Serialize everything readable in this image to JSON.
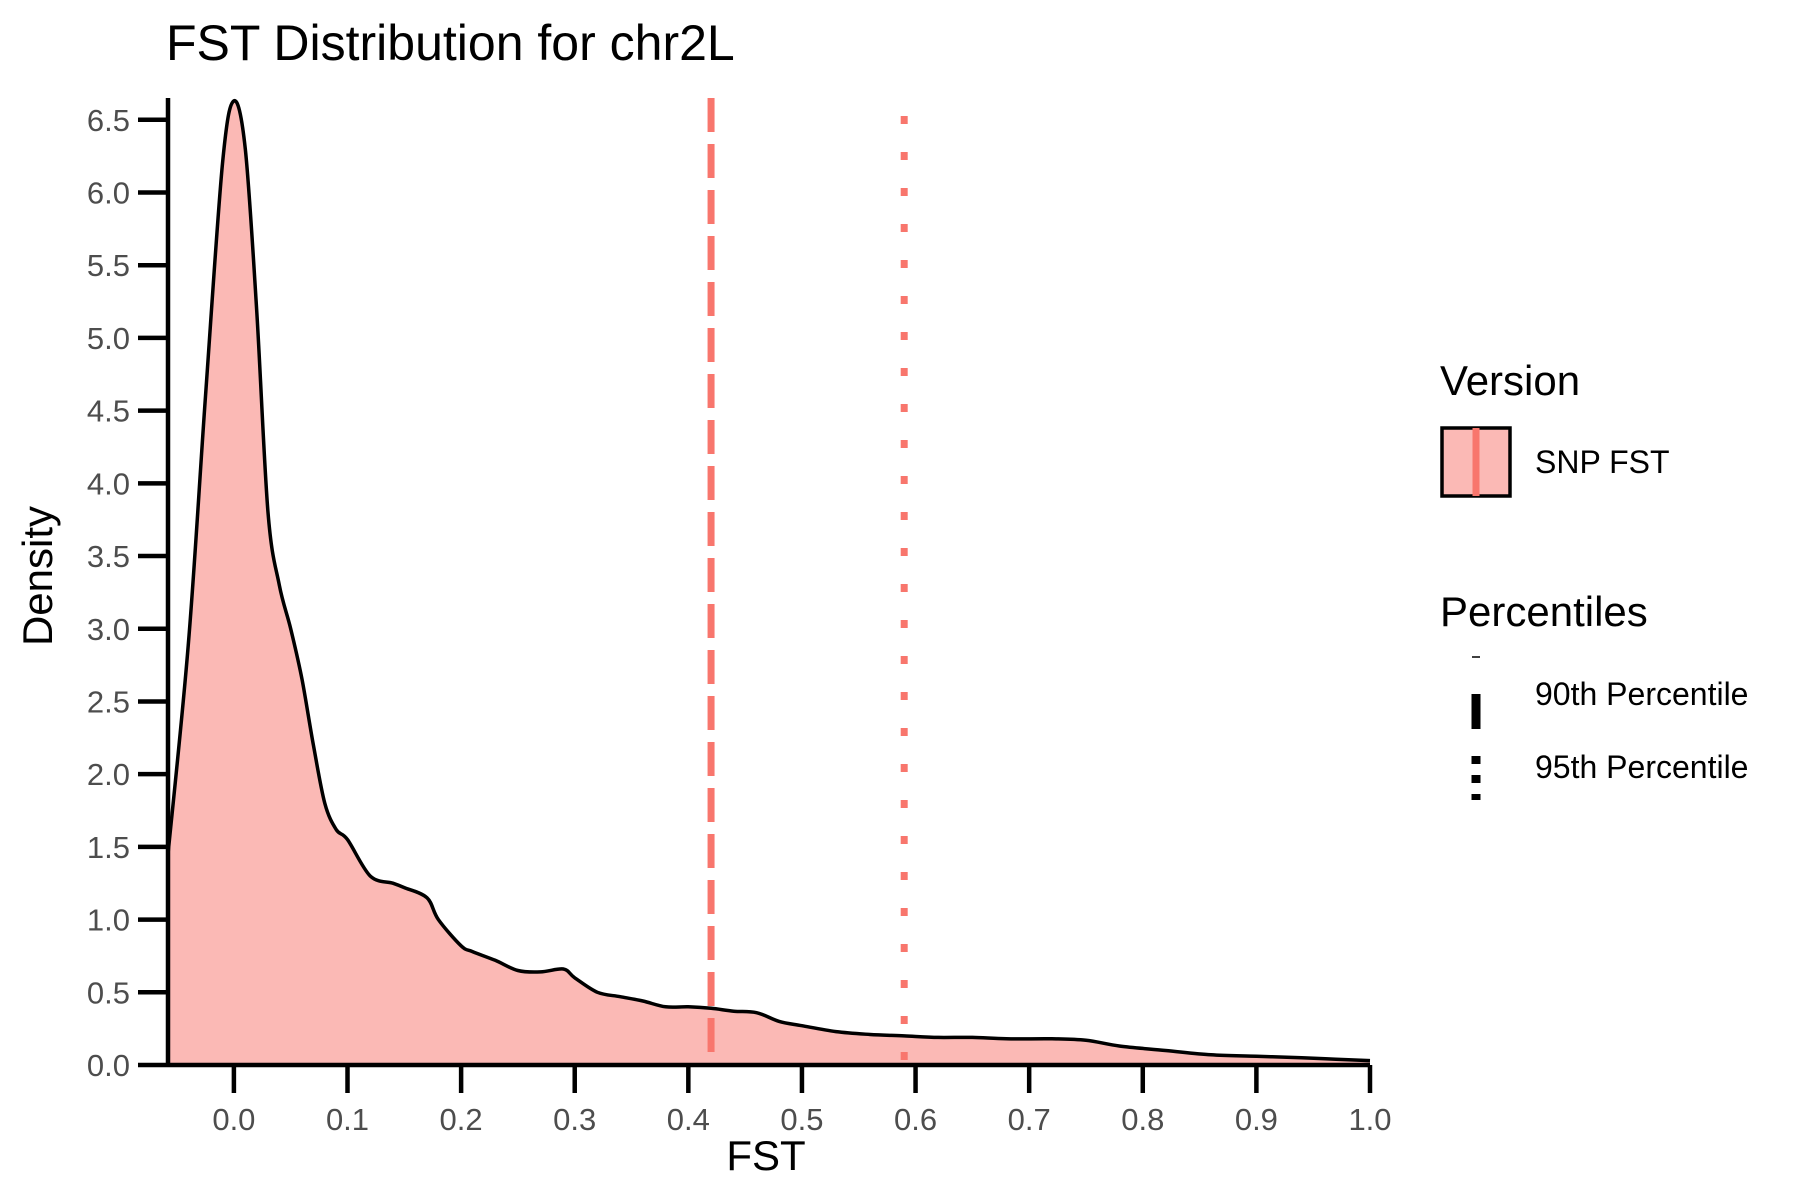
{
  "chart_data": {
    "type": "area",
    "title": "FST Distribution for chr2L",
    "xlabel": "FST",
    "ylabel": "Density",
    "xlim": [
      -0.058,
      1.0
    ],
    "ylim": [
      0,
      6.65
    ],
    "x_ticks": [
      "0.0",
      "0.1",
      "0.2",
      "0.3",
      "0.4",
      "0.5",
      "0.6",
      "0.7",
      "0.8",
      "0.9",
      "1.0"
    ],
    "y_ticks": [
      "0.0",
      "0.5",
      "1.0",
      "1.5",
      "2.0",
      "2.5",
      "3.0",
      "3.5",
      "4.0",
      "4.5",
      "5.0",
      "5.5",
      "6.0",
      "6.5"
    ],
    "grid": false,
    "legend_position": "right",
    "series": [
      {
        "name": "SNP FST",
        "fill_color": "#F8766D",
        "x": [
          -0.058,
          -0.04,
          -0.025,
          -0.01,
          0.0,
          0.01,
          0.02,
          0.03,
          0.04,
          0.05,
          0.06,
          0.07,
          0.08,
          0.09,
          0.1,
          0.12,
          0.14,
          0.15,
          0.17,
          0.18,
          0.2,
          0.21,
          0.23,
          0.25,
          0.27,
          0.29,
          0.3,
          0.32,
          0.34,
          0.36,
          0.38,
          0.4,
          0.42,
          0.44,
          0.46,
          0.48,
          0.5,
          0.53,
          0.56,
          0.59,
          0.62,
          0.65,
          0.68,
          0.72,
          0.75,
          0.78,
          0.82,
          0.86,
          0.9,
          0.94,
          0.97,
          1.0
        ],
        "y": [
          1.45,
          2.9,
          4.6,
          6.2,
          6.63,
          6.3,
          5.2,
          3.8,
          3.3,
          3.0,
          2.65,
          2.2,
          1.8,
          1.62,
          1.55,
          1.3,
          1.25,
          1.22,
          1.15,
          1.0,
          0.82,
          0.78,
          0.72,
          0.65,
          0.64,
          0.66,
          0.6,
          0.5,
          0.47,
          0.44,
          0.4,
          0.4,
          0.39,
          0.37,
          0.36,
          0.3,
          0.27,
          0.23,
          0.21,
          0.2,
          0.19,
          0.19,
          0.18,
          0.18,
          0.17,
          0.13,
          0.1,
          0.07,
          0.06,
          0.05,
          0.04,
          0.03
        ]
      }
    ],
    "percentiles": {
      "title": "Percentiles",
      "color": "#F8766D",
      "items": [
        {
          "name": "90th Percentile",
          "value": 0.42,
          "style": "dashed"
        },
        {
          "name": "95th Percentile",
          "value": 0.59,
          "style": "dotted"
        }
      ]
    },
    "legend": {
      "version_title": "Version",
      "version_items": [
        "SNP FST"
      ]
    }
  }
}
